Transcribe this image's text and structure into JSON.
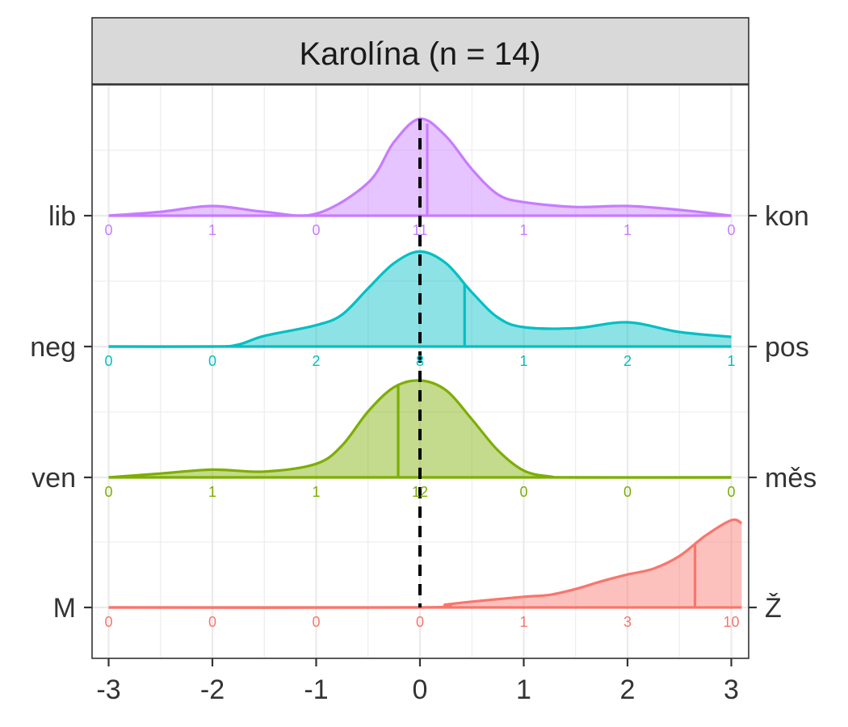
{
  "chart_data": {
    "type": "area",
    "title": "Karolína (n = 14)",
    "xlabel": "",
    "ylabel": "",
    "xlim": [
      -3,
      3
    ],
    "x_ticks": [
      -3,
      -2,
      -1,
      0,
      1,
      2,
      3
    ],
    "x_tick_labels": [
      "-3",
      "-2",
      "-1",
      "0",
      "1",
      "2",
      "3"
    ],
    "reference_line_x": 0,
    "grid": true,
    "legend": "none",
    "rows": [
      {
        "left_label": "lib",
        "right_label": "kon",
        "color": "#C77CFF",
        "mean": 0.07,
        "counts": [
          0,
          1,
          0,
          11,
          1,
          1,
          0
        ],
        "count_labels": [
          "0",
          "1",
          "0",
          "11",
          "1",
          "1",
          "0"
        ],
        "density": [
          [
            -3.0,
            0.0
          ],
          [
            -2.5,
            0.04
          ],
          [
            -2.0,
            0.1
          ],
          [
            -1.5,
            0.04
          ],
          [
            -1.0,
            0.02
          ],
          [
            -0.5,
            0.34
          ],
          [
            -0.25,
            0.76
          ],
          [
            0.0,
            1.0
          ],
          [
            0.25,
            0.82
          ],
          [
            0.5,
            0.48
          ],
          [
            0.75,
            0.22
          ],
          [
            1.0,
            0.14
          ],
          [
            1.5,
            0.09
          ],
          [
            2.0,
            0.1
          ],
          [
            2.5,
            0.06
          ],
          [
            3.0,
            0.0
          ]
        ]
      },
      {
        "left_label": "neg",
        "right_label": "pos",
        "color": "#00BFC4",
        "mean": 0.43,
        "counts": [
          0,
          0,
          2,
          8,
          1,
          2,
          1
        ],
        "count_labels": [
          "0",
          "0",
          "2",
          "8",
          "1",
          "2",
          "1"
        ],
        "density": [
          [
            -3.0,
            0.0
          ],
          [
            -2.0,
            0.0
          ],
          [
            -1.75,
            0.02
          ],
          [
            -1.5,
            0.11
          ],
          [
            -1.0,
            0.22
          ],
          [
            -0.75,
            0.33
          ],
          [
            -0.5,
            0.6
          ],
          [
            -0.25,
            0.86
          ],
          [
            0.0,
            0.98
          ],
          [
            0.25,
            0.86
          ],
          [
            0.5,
            0.56
          ],
          [
            0.75,
            0.3
          ],
          [
            1.0,
            0.2
          ],
          [
            1.5,
            0.19
          ],
          [
            2.0,
            0.25
          ],
          [
            2.5,
            0.15
          ],
          [
            3.0,
            0.1
          ]
        ]
      },
      {
        "left_label": "ven",
        "right_label": "měs",
        "color": "#7CAE00",
        "mean": -0.21,
        "counts": [
          0,
          1,
          1,
          12,
          0,
          0,
          0
        ],
        "count_labels": [
          "0",
          "1",
          "1",
          "12",
          "0",
          "0",
          "0"
        ],
        "density": [
          [
            -3.0,
            0.0
          ],
          [
            -2.5,
            0.04
          ],
          [
            -2.0,
            0.08
          ],
          [
            -1.5,
            0.06
          ],
          [
            -1.0,
            0.14
          ],
          [
            -0.75,
            0.33
          ],
          [
            -0.5,
            0.68
          ],
          [
            -0.25,
            0.93
          ],
          [
            0.0,
            1.0
          ],
          [
            0.25,
            0.9
          ],
          [
            0.5,
            0.6
          ],
          [
            0.75,
            0.28
          ],
          [
            1.0,
            0.07
          ],
          [
            1.25,
            0.01
          ],
          [
            1.5,
            0.0
          ],
          [
            3.0,
            0.0
          ]
        ]
      },
      {
        "left_label": "M",
        "right_label": "Ž",
        "color": "#F8766D",
        "mean": 2.65,
        "counts": [
          0,
          0,
          0,
          0,
          1,
          3,
          10
        ],
        "count_labels": [
          "0",
          "0",
          "0",
          "0",
          "1",
          "3",
          "10"
        ],
        "density": [
          [
            -3.0,
            0.0
          ],
          [
            0.0,
            0.0
          ],
          [
            0.25,
            0.03
          ],
          [
            0.5,
            0.06
          ],
          [
            1.0,
            0.11
          ],
          [
            1.25,
            0.13
          ],
          [
            1.5,
            0.19
          ],
          [
            1.75,
            0.27
          ],
          [
            2.0,
            0.34
          ],
          [
            2.25,
            0.4
          ],
          [
            2.5,
            0.53
          ],
          [
            2.75,
            0.74
          ],
          [
            3.0,
            0.9
          ],
          [
            3.1,
            0.87
          ]
        ]
      }
    ]
  }
}
